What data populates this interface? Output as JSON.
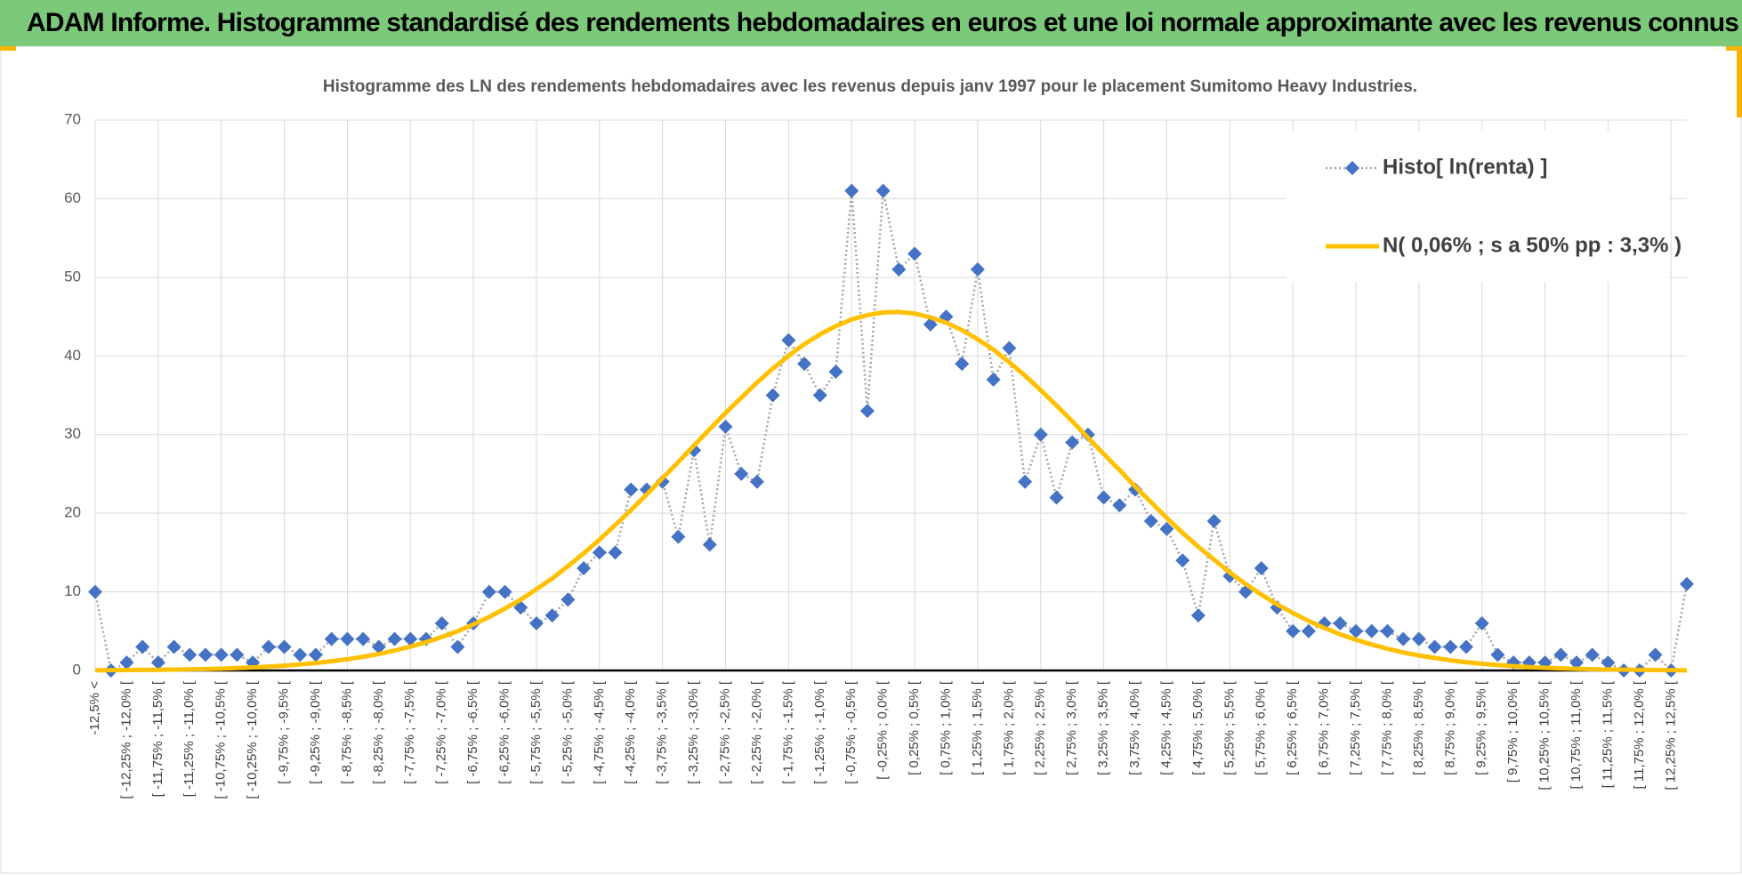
{
  "header_title": "ADAM Informe. Histogramme standardisé des rendements hebdomadaires en euros et une loi normale approximante avec les revenus connus distribués",
  "chart_data": {
    "type": "line",
    "title": "Histogramme des LN des rendements hebdomadaires avec les revenus depuis janv 1997 pour le placement Sumitomo Heavy Industries.",
    "categories": [
      "-12,5% <",
      null,
      "[ -12,25% ; -12,0% [",
      null,
      "[ -11,75% ; -11,5% [",
      null,
      "[ -11,25% ; -11,0% [",
      null,
      "[ -10,75% ; -10,5% [",
      null,
      "[ -10,25% ; -10,0% [",
      null,
      "[ -9,75% ; -9,5% [",
      null,
      "[ -9,25% ; -9,0% [",
      null,
      "[ -8,75% ; -8,5% [",
      null,
      "[ -8,25% ; -8,0% [",
      null,
      "[ -7,75% ; -7,5% [",
      null,
      "[ -7,25% ; -7,0% [",
      null,
      "[ -6,75% ; -6,5% [",
      null,
      "[ -6,25% ; -6,0% [",
      null,
      "[ -5,75% ; -5,5% [",
      null,
      "[ -5,25% ; -5,0% [",
      null,
      "[ -4,75% ; -4,5% [",
      null,
      "[ -4,25% ; -4,0% [",
      null,
      "[ -3,75% ; -3,5% [",
      null,
      "[ -3,25% ; -3,0% [",
      null,
      "[ -2,75% ; -2,5% [",
      null,
      "[ -2,25% ; -2,0% [",
      null,
      "[ -1,75% ; -1,5% [",
      null,
      "[ -1,25% ; -1,0% [",
      null,
      "[ -0,75% ; -0,5% [",
      null,
      "[ -0,25% ; 0,0% [",
      null,
      "[ 0,25% ; 0,5% [",
      null,
      "[ 0,75% ; 1,0% [",
      null,
      "[ 1,25% ; 1,5% [",
      null,
      "[ 1,75% ; 2,0% [",
      null,
      "[ 2,25% ; 2,5% [",
      null,
      "[ 2,75% ; 3,0% [",
      null,
      "[ 3,25% ; 3,5% [",
      null,
      "[ 3,75% ; 4,0% [",
      null,
      "[ 4,25% ; 4,5% [",
      null,
      "[ 4,75% ; 5,0% [",
      null,
      "[ 5,25% ; 5,5% [",
      null,
      "[ 5,75% ; 6,0% [",
      null,
      "[ 6,25% ; 6,5% [",
      null,
      "[ 6,75% ; 7,0% [",
      null,
      "[ 7,25% ; 7,5% [",
      null,
      "[ 7,75% ; 8,0% [",
      null,
      "[ 8,25% ; 8,5% [",
      null,
      "[ 8,75% ; 9,0% [",
      null,
      "[ 9,25% ; 9,5% [",
      null,
      "[ 9,75% ; 10,0% [",
      null,
      "[ 10,25% ; 10,5% [",
      null,
      "[ 10,75% ; 11,0% [",
      null,
      "[ 11,25% ; 11,5% [",
      null,
      "[ 11,75% ; 12,0% [",
      null,
      "[ 12,25% ; 12,5% [",
      null
    ],
    "series": [
      {
        "name": "Histo[ ln(renta) ]",
        "color": "#4472c4",
        "marker": "diamond",
        "line": "dotted",
        "values": [
          10,
          0,
          1,
          3,
          1,
          3,
          2,
          2,
          2,
          2,
          1,
          3,
          3,
          2,
          2,
          4,
          4,
          4,
          3,
          4,
          4,
          4,
          6,
          3,
          6,
          10,
          10,
          8,
          6,
          7,
          9,
          13,
          15,
          15,
          23,
          23,
          24,
          17,
          28,
          16,
          31,
          25,
          24,
          35,
          42,
          39,
          35,
          38,
          61,
          33,
          61,
          51,
          53,
          44,
          45,
          39,
          51,
          37,
          41,
          24,
          30,
          22,
          29,
          30,
          22,
          21,
          23,
          19,
          18,
          14,
          7,
          19,
          12,
          10,
          13,
          8,
          5,
          5,
          6,
          6,
          5,
          5,
          5,
          4,
          4,
          3,
          3,
          3,
          6,
          2,
          1,
          1,
          1,
          2,
          1,
          2,
          1,
          0,
          0,
          2,
          0,
          11
        ]
      },
      {
        "name": "N( 0,06% ; s a 50% pp : 3,3% )",
        "color": "#ffc000",
        "marker": "none",
        "line": "solid",
        "values": [
          0.03,
          0.04,
          0.05,
          0.07,
          0.09,
          0.12,
          0.15,
          0.19,
          0.24,
          0.31,
          0.39,
          0.49,
          0.61,
          0.77,
          0.95,
          1.17,
          1.43,
          1.74,
          2.1,
          2.53,
          3.03,
          3.6,
          4.26,
          5.0,
          5.86,
          6.8,
          7.88,
          9.0,
          10.34,
          11.7,
          13.27,
          14.9,
          16.64,
          18.5,
          20.41,
          22.4,
          24.45,
          26.5,
          28.62,
          30.7,
          32.75,
          34.7,
          36.63,
          38.4,
          40.03,
          41.5,
          42.75,
          43.8,
          44.63,
          45.2,
          45.53,
          45.6,
          45.39,
          44.9,
          44.23,
          43.3,
          42.12,
          40.8,
          39.2,
          37.5,
          35.65,
          33.7,
          31.69,
          29.6,
          27.53,
          25.5,
          23.37,
          21.4,
          19.39,
          17.5,
          15.73,
          14.1,
          12.46,
          11.0,
          9.65,
          8.4,
          7.31,
          6.3,
          5.41,
          4.6,
          3.91,
          3.3,
          2.76,
          2.3,
          1.91,
          1.6,
          1.29,
          1.05,
          0.85,
          0.69,
          0.55,
          0.43,
          0.34,
          0.27,
          0.21,
          0.16,
          0.13,
          0.1,
          0.08,
          0.06,
          0.04,
          0.02
        ]
      }
    ],
    "ylim": [
      0,
      70
    ],
    "yticks": [
      0,
      10,
      20,
      30,
      40,
      50,
      60,
      70
    ],
    "grid": true,
    "legend": "upper right"
  }
}
